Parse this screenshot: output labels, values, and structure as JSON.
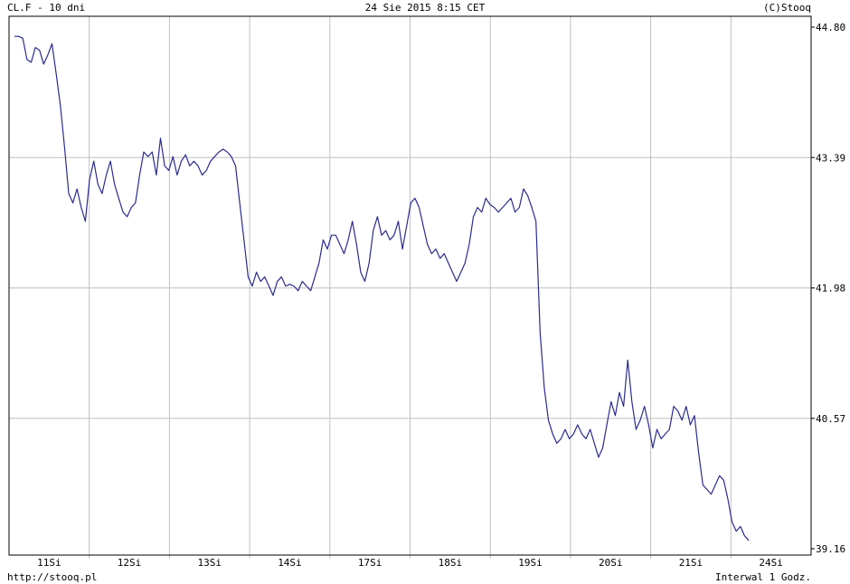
{
  "header": {
    "left": "CL.F - 10 dni",
    "center": "24 Sie 2015 8:15 CET",
    "right": "(C)Stooq"
  },
  "footer": {
    "left": "http://stooq.pl",
    "right": "Interwal 1 Godz."
  },
  "colors": {
    "line": "#2b2b8f",
    "grid": "#c0c0c0",
    "frame": "#000000",
    "background": "#ffffff"
  },
  "chart_data": {
    "type": "line",
    "title": "",
    "xlabel": "",
    "ylabel": "",
    "ylim": [
      39.16,
      44.8
    ],
    "y_ticks": [
      44.8,
      43.39,
      41.98,
      40.57,
      39.16
    ],
    "y_tick_labels": [
      "44.80",
      "43.39",
      "41.98",
      "40.57",
      "39.16"
    ],
    "x_ticks": [
      "11Si",
      "12Si",
      "13Si",
      "14Si",
      "17Si",
      "18Si",
      "19Si",
      "20Si",
      "21Si",
      "24Si"
    ],
    "grid": true,
    "series": [
      {
        "values": [
          44.7,
          44.7,
          44.68,
          44.45,
          44.42,
          44.58,
          44.55,
          44.4,
          44.5,
          44.62,
          44.3,
          43.95,
          43.5,
          43.0,
          42.9,
          43.05,
          42.85,
          42.7,
          43.15,
          43.35,
          43.1,
          43.0,
          43.2,
          43.35,
          43.1,
          42.95,
          42.8,
          42.75,
          42.85,
          42.9,
          43.2,
          43.45,
          43.4,
          43.45,
          43.2,
          43.6,
          43.3,
          43.25,
          43.4,
          43.2,
          43.35,
          43.42,
          43.3,
          43.35,
          43.3,
          43.2,
          43.25,
          43.35,
          43.4,
          43.45,
          43.48,
          43.45,
          43.4,
          43.3,
          42.9,
          42.5,
          42.1,
          42.0,
          42.15,
          42.05,
          42.1,
          42.0,
          41.9,
          42.05,
          42.1,
          42.0,
          42.02,
          42.0,
          41.95,
          42.05,
          42.0,
          41.95,
          42.1,
          42.25,
          42.5,
          42.4,
          42.55,
          42.55,
          42.45,
          42.35,
          42.5,
          42.7,
          42.45,
          42.15,
          42.05,
          42.25,
          42.6,
          42.75,
          42.55,
          42.6,
          42.5,
          42.55,
          42.7,
          42.4,
          42.65,
          42.9,
          42.95,
          42.85,
          42.65,
          42.45,
          42.35,
          42.4,
          42.3,
          42.35,
          42.25,
          42.15,
          42.05,
          42.15,
          42.25,
          42.45,
          42.75,
          42.85,
          42.8,
          42.95,
          42.88,
          42.85,
          42.8,
          42.85,
          42.9,
          42.95,
          42.8,
          42.85,
          43.05,
          42.98,
          42.85,
          42.7,
          41.5,
          40.9,
          40.55,
          40.4,
          40.3,
          40.35,
          40.45,
          40.35,
          40.4,
          40.5,
          40.4,
          40.35,
          40.45,
          40.3,
          40.15,
          40.25,
          40.5,
          40.75,
          40.6,
          40.85,
          40.7,
          41.2,
          40.75,
          40.45,
          40.55,
          40.7,
          40.5,
          40.25,
          40.45,
          40.35,
          40.4,
          40.45,
          40.7,
          40.65,
          40.55,
          40.7,
          40.5,
          40.6,
          40.2,
          39.85,
          39.8,
          39.75,
          39.85,
          39.95,
          39.9,
          39.7,
          39.45,
          39.35,
          39.4,
          39.3,
          39.25
        ]
      }
    ]
  }
}
